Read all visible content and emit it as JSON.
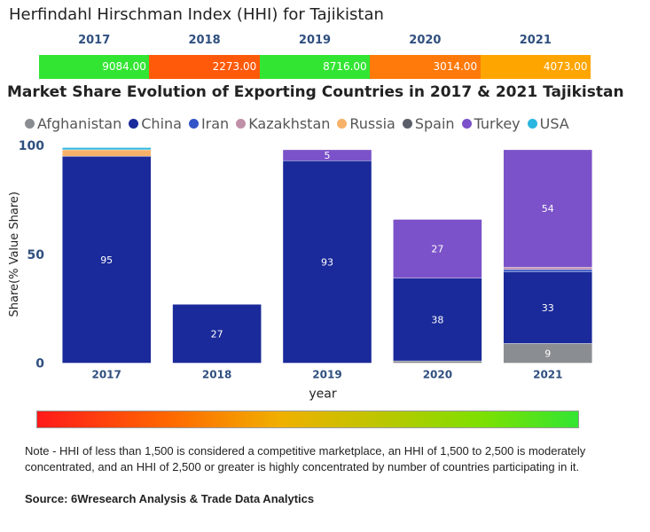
{
  "hhi": {
    "title": "Herfindahl Hirschman Index (HHI) for Tajikistan",
    "items": [
      {
        "year": "2017",
        "value": "9084.00",
        "color": "#33e533"
      },
      {
        "year": "2018",
        "value": "2273.00",
        "color": "#ff5a0a"
      },
      {
        "year": "2019",
        "value": "8716.00",
        "color": "#33e533"
      },
      {
        "year": "2020",
        "value": "3014.00",
        "color": "#ff7a0a"
      },
      {
        "year": "2021",
        "value": "4073.00",
        "color": "#ffa500"
      }
    ]
  },
  "chart_data": {
    "type": "bar",
    "stacked": true,
    "title": "Market Share Evolution of Exporting Countries in 2017 & 2021 Tajikistan",
    "xlabel": "year",
    "ylabel": "Share(% Value Share)",
    "ylim": [
      0,
      100
    ],
    "yticks": [
      "0",
      "50",
      "100"
    ],
    "categories": [
      "2017",
      "2018",
      "2019",
      "2020",
      "2021"
    ],
    "series": [
      {
        "name": "Afghanistan",
        "color": "#8a8d91",
        "values": [
          0,
          0,
          0,
          1,
          9
        ],
        "labels": [
          "",
          "",
          "",
          "",
          "9"
        ]
      },
      {
        "name": "China",
        "color": "#1a2a9a",
        "values": [
          95,
          27,
          93,
          38,
          33
        ],
        "labels": [
          "95",
          "27",
          "93",
          "38",
          "33"
        ]
      },
      {
        "name": "Iran",
        "color": "#3355c8",
        "values": [
          0,
          0,
          0,
          0,
          1
        ],
        "labels": [
          "",
          "",
          "",
          "",
          ""
        ]
      },
      {
        "name": "Kazakhstan",
        "color": "#c090a8",
        "values": [
          0,
          0,
          0,
          0,
          1
        ],
        "labels": [
          "",
          "",
          "",
          "",
          ""
        ]
      },
      {
        "name": "Russia",
        "color": "#f7b26a",
        "values": [
          3,
          0,
          0,
          0,
          0
        ],
        "labels": [
          "",
          "",
          "",
          "",
          ""
        ]
      },
      {
        "name": "Spain",
        "color": "#5a5f6a",
        "values": [
          0,
          0,
          0,
          0,
          0
        ],
        "labels": [
          "",
          "",
          "",
          "",
          ""
        ]
      },
      {
        "name": "Turkey",
        "color": "#7b52c9",
        "values": [
          0,
          0,
          5,
          27,
          54
        ],
        "labels": [
          "",
          "",
          "5",
          "27",
          "54"
        ]
      },
      {
        "name": "USA",
        "color": "#2bb6e0",
        "values": [
          1,
          0,
          0,
          0,
          0
        ],
        "labels": [
          "",
          "",
          "",
          "",
          ""
        ]
      }
    ]
  },
  "note": "Note - HHI of less than 1,500 is considered a competitive marketplace, an HHI of 1,500 to 2,500 is moderately concentrated, and an HHI of 2,500 or greater is highly concentrated by number of countries participating in it.",
  "source": "Source: 6Wresearch Analysis & Trade Data Analytics"
}
